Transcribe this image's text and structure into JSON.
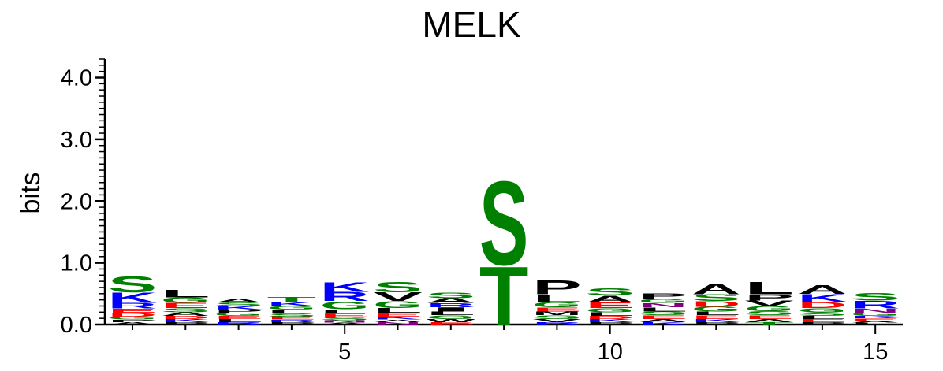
{
  "chart_data": {
    "type": "sequence-logo",
    "title": "MELK",
    "xlabel": "",
    "ylabel": "bits",
    "ylim": [
      0,
      4.3
    ],
    "yticks": [
      "0.0",
      "1.0",
      "2.0",
      "3.0",
      "4.0"
    ],
    "xticks": [
      "5",
      "10",
      "15"
    ],
    "xtick_positions": [
      5,
      10,
      15
    ],
    "grid": false,
    "colors": {
      "S": "#008000",
      "T": "#008000",
      "G": "#008000",
      "Y": "#008000",
      "C": "#008000",
      "Q": "#008000",
      "N": "#800080",
      "K": "#0000ff",
      "R": "#0000ff",
      "H": "#0000ff",
      "D": "#ff0000",
      "E": "#ff0000",
      "P": "#000000",
      "L": "#000000",
      "A": "#000000",
      "V": "#000000",
      "I": "#000000",
      "M": "#000000",
      "F": "#000000",
      "W": "#000000"
    },
    "positions": [
      {
        "pos": 1,
        "letters": [
          [
            "S",
            0.26
          ],
          [
            "K",
            0.17
          ],
          [
            "R",
            0.09
          ],
          [
            "E",
            0.07
          ],
          [
            "D",
            0.06
          ],
          [
            "G",
            0.05
          ],
          [
            "A",
            0.04
          ],
          [
            "P",
            0.04
          ]
        ]
      },
      {
        "pos": 2,
        "letters": [
          [
            "L",
            0.13
          ],
          [
            "G",
            0.09
          ],
          [
            "E",
            0.08
          ],
          [
            "S",
            0.07
          ],
          [
            "A",
            0.06
          ],
          [
            "K",
            0.05
          ],
          [
            "D",
            0.05
          ],
          [
            "P",
            0.04
          ]
        ]
      },
      {
        "pos": 3,
        "letters": [
          [
            "L",
            0.05
          ],
          [
            "K",
            0.06
          ],
          [
            "S",
            0.06
          ],
          [
            "A",
            0.06
          ],
          [
            "E",
            0.05
          ],
          [
            "G",
            0.05
          ],
          [
            "P",
            0.05
          ],
          [
            "R",
            0.04
          ]
        ]
      },
      {
        "pos": 4,
        "letters": [
          [
            "T",
            0.08
          ],
          [
            "L",
            0.06
          ],
          [
            "K",
            0.07
          ],
          [
            "G",
            0.06
          ],
          [
            "E",
            0.05
          ],
          [
            "S",
            0.05
          ],
          [
            "P",
            0.04
          ],
          [
            "R",
            0.04
          ]
        ]
      },
      {
        "pos": 5,
        "letters": [
          [
            "K",
            0.16
          ],
          [
            "R",
            0.15
          ],
          [
            "G",
            0.13
          ],
          [
            "L",
            0.07
          ],
          [
            "E",
            0.06
          ],
          [
            "S",
            0.05
          ],
          [
            "N",
            0.04
          ],
          [
            "A",
            0.03
          ]
        ]
      },
      {
        "pos": 6,
        "letters": [
          [
            "S",
            0.17
          ],
          [
            "V",
            0.14
          ],
          [
            "G",
            0.11
          ],
          [
            "L",
            0.08
          ],
          [
            "E",
            0.06
          ],
          [
            "K",
            0.05
          ],
          [
            "N",
            0.04
          ],
          [
            "A",
            0.04
          ]
        ]
      },
      {
        "pos": 7,
        "letters": [
          [
            "I",
            0.07
          ],
          [
            "A",
            0.08
          ],
          [
            "S",
            0.09
          ],
          [
            "R",
            0.07
          ],
          [
            "G",
            0.06
          ],
          [
            "L",
            0.06
          ],
          [
            "W",
            0.05
          ],
          [
            "E",
            0.04
          ]
        ]
      },
      {
        "pos": 8,
        "letters": [
          [
            "S",
            1.4
          ],
          [
            "T",
            0.97
          ]
        ]
      },
      {
        "pos": 9,
        "letters": [
          [
            "P",
            0.23
          ],
          [
            "L",
            0.13
          ],
          [
            "G",
            0.08
          ],
          [
            "E",
            0.07
          ],
          [
            "S",
            0.06
          ],
          [
            "M",
            0.06
          ],
          [
            "V",
            0.05
          ],
          [
            "R",
            0.04
          ]
        ]
      },
      {
        "pos": 10,
        "letters": [
          [
            "S",
            0.12
          ],
          [
            "A",
            0.11
          ],
          [
            "E",
            0.09
          ],
          [
            "G",
            0.07
          ],
          [
            "L",
            0.06
          ],
          [
            "K",
            0.05
          ],
          [
            "D",
            0.05
          ],
          [
            "P",
            0.04
          ]
        ]
      },
      {
        "pos": 11,
        "letters": [
          [
            "L",
            0.07
          ],
          [
            "N",
            0.07
          ],
          [
            "P",
            0.08
          ],
          [
            "G",
            0.07
          ],
          [
            "E",
            0.06
          ],
          [
            "S",
            0.06
          ],
          [
            "A",
            0.05
          ],
          [
            "K",
            0.04
          ]
        ]
      },
      {
        "pos": 12,
        "letters": [
          [
            "A",
            0.17
          ],
          [
            "S",
            0.11
          ],
          [
            "D",
            0.09
          ],
          [
            "G",
            0.08
          ],
          [
            "E",
            0.06
          ],
          [
            "L",
            0.06
          ],
          [
            "K",
            0.05
          ],
          [
            "P",
            0.04
          ]
        ]
      },
      {
        "pos": 13,
        "letters": [
          [
            "L",
            0.2
          ],
          [
            "P",
            0.1
          ],
          [
            "V",
            0.09
          ],
          [
            "G",
            0.08
          ],
          [
            "S",
            0.07
          ],
          [
            "E",
            0.06
          ],
          [
            "A",
            0.05
          ],
          [
            "T",
            0.04
          ]
        ]
      },
      {
        "pos": 14,
        "letters": [
          [
            "A",
            0.14
          ],
          [
            "K",
            0.13
          ],
          [
            "D",
            0.1
          ],
          [
            "G",
            0.07
          ],
          [
            "S",
            0.06
          ],
          [
            "E",
            0.05
          ],
          [
            "L",
            0.05
          ],
          [
            "P",
            0.04
          ]
        ]
      },
      {
        "pos": 15,
        "letters": [
          [
            "R",
            0.13
          ],
          [
            "S",
            0.13
          ],
          [
            "N",
            0.07
          ],
          [
            "G",
            0.05
          ],
          [
            "E",
            0.04
          ],
          [
            "K",
            0.04
          ],
          [
            "L",
            0.03
          ],
          [
            "A",
            0.03
          ]
        ]
      }
    ]
  }
}
